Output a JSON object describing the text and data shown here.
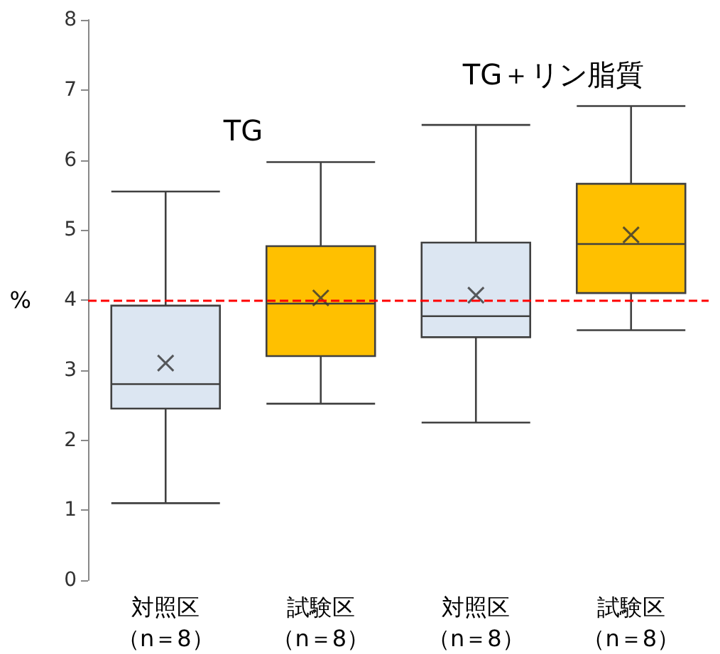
{
  "chart_data": {
    "type": "box",
    "ylabel": "%",
    "categories": [
      "対照区（n＝8）",
      "試験区（n＝8）",
      "対照区（n＝8）",
      "試験区（n＝8）"
    ],
    "colors": [
      "#dce6f2",
      "#ffc000",
      "#dce6f2",
      "#ffc000"
    ],
    "boxes": [
      {
        "low": 1.1,
        "q1": 2.45,
        "median": 2.8,
        "q3": 3.92,
        "high": 5.55,
        "mean": 3.1
      },
      {
        "low": 2.52,
        "q1": 3.2,
        "median": 3.95,
        "q3": 4.77,
        "high": 5.97,
        "mean": 4.03
      },
      {
        "low": 2.25,
        "q1": 3.47,
        "median": 3.77,
        "q3": 4.82,
        "high": 6.5,
        "mean": 4.07
      },
      {
        "low": 3.57,
        "q1": 4.1,
        "median": 4.8,
        "q3": 5.66,
        "high": 6.77,
        "mean": 4.93
      }
    ],
    "annotations": [
      "TG",
      "TG＋リン脂質"
    ],
    "ref_lines": [
      {
        "axis": "y",
        "value": 4,
        "color": "#ff0000",
        "line_style": "dashed"
      }
    ],
    "ylim": [
      0,
      8
    ],
    "yticks": [
      0,
      1,
      2,
      3,
      4,
      5,
      6,
      7,
      8
    ],
    "grid": false
  }
}
